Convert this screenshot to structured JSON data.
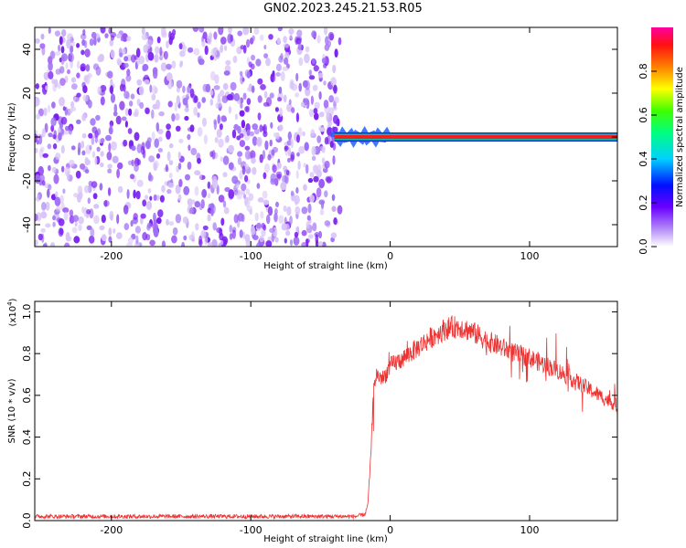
{
  "title": "GN02.2023.245.21.53.R05",
  "colors": {
    "snr_line": "#ee3333",
    "speckle": "#7a1ff0",
    "band_outer": "#10c0a0",
    "band_core": "#f02020"
  },
  "chart_data": [
    {
      "type": "heatmap",
      "xlabel": "Height of straight line (km)",
      "ylabel": "Frequency (Hz)",
      "xlim": [
        -255,
        163
      ],
      "ylim": [
        -50,
        50
      ],
      "x_ticks": [
        "-200",
        "-100",
        "0",
        "100"
      ],
      "y_ticks": [
        "-40",
        "-20",
        "0",
        "20",
        "40"
      ],
      "colorbar": {
        "label": "Normalized spectral amplitude",
        "range": [
          0,
          1
        ],
        "ticks": [
          "0.0",
          "0.2",
          "0.4",
          "0.6",
          "0.8"
        ],
        "colormap": "rainbow"
      },
      "noise_region_x": [
        -255,
        -40
      ],
      "signal_band_frequency_hz": 0,
      "signal_band_x": [
        -40,
        163
      ]
    },
    {
      "type": "line",
      "xlabel": "Height of straight line (km)",
      "ylabel": "SNR (10 * v/v)",
      "multiplier": "(x10",
      "multiplier_exp": "4",
      "multiplier_close": ")",
      "xlim": [
        -255,
        163
      ],
      "ylim": [
        0,
        1.05
      ],
      "x_ticks": [
        "-200",
        "-100",
        "0",
        "100"
      ],
      "y_ticks": [
        "0.0",
        "0.2",
        "0.4",
        "0.6",
        "0.8",
        "1.0"
      ],
      "series": [
        {
          "x": [
            -255,
            -200,
            -150,
            -100,
            -50,
            -25,
            -18,
            -16,
            -14,
            -12,
            -10,
            -5,
            0,
            10,
            20,
            30,
            40,
            50,
            60,
            70,
            80,
            90,
            100,
            110,
            120,
            130,
            140,
            150,
            163
          ],
          "y": [
            0.02,
            0.02,
            0.02,
            0.02,
            0.02,
            0.02,
            0.03,
            0.08,
            0.3,
            0.62,
            0.7,
            0.68,
            0.74,
            0.78,
            0.83,
            0.88,
            0.92,
            0.93,
            0.9,
            0.86,
            0.83,
            0.8,
            0.78,
            0.75,
            0.72,
            0.68,
            0.64,
            0.6,
            0.55
          ]
        }
      ]
    }
  ]
}
